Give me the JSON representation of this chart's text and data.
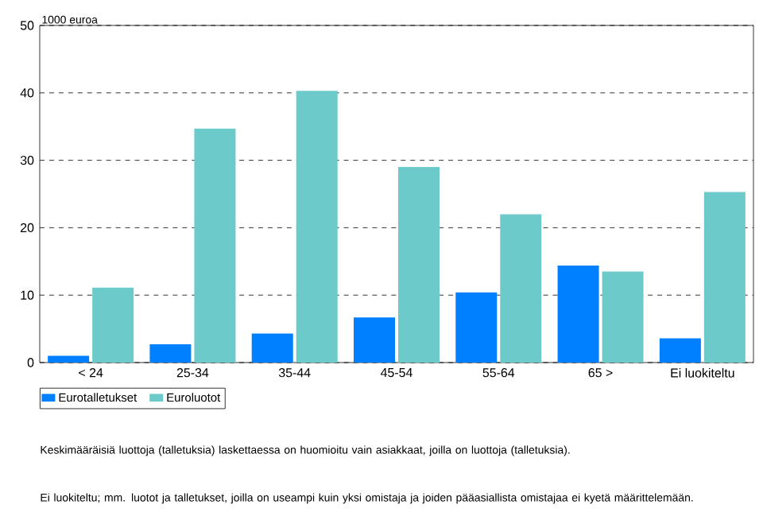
{
  "chart_data": {
    "type": "bar",
    "ylabel": "1000 euroa",
    "categories": [
      "< 24",
      "25-34",
      "35-44",
      "45-54",
      "55-64",
      "65 >",
      "Ei luokiteltu"
    ],
    "series": [
      {
        "name": "Eurotalletukset",
        "color": "#0080ff",
        "values": [
          1.0,
          2.7,
          4.3,
          6.7,
          10.4,
          14.4,
          3.6
        ]
      },
      {
        "name": "Euroluotot",
        "color": "#6ccbca",
        "values": [
          11.1,
          34.7,
          40.3,
          29.0,
          22.0,
          13.5,
          25.3
        ]
      }
    ],
    "ylim": [
      0,
      50
    ],
    "yticks": [
      0,
      10,
      20,
      30,
      40,
      50
    ],
    "grid": "y",
    "legend": "bottom left",
    "annotations": [
      "Keskimääräisiä luottoja (talletuksia) laskettaessa on huomioitu vain asiakkaat, joilla on luottoja (talletuksia).",
      "Ei luokiteltu; mm. luotot ja talletukset, joilla on useampi kuin yksi omistaja ja joiden pääasiallista omistajaa ei kyetä määrittelemään."
    ]
  }
}
